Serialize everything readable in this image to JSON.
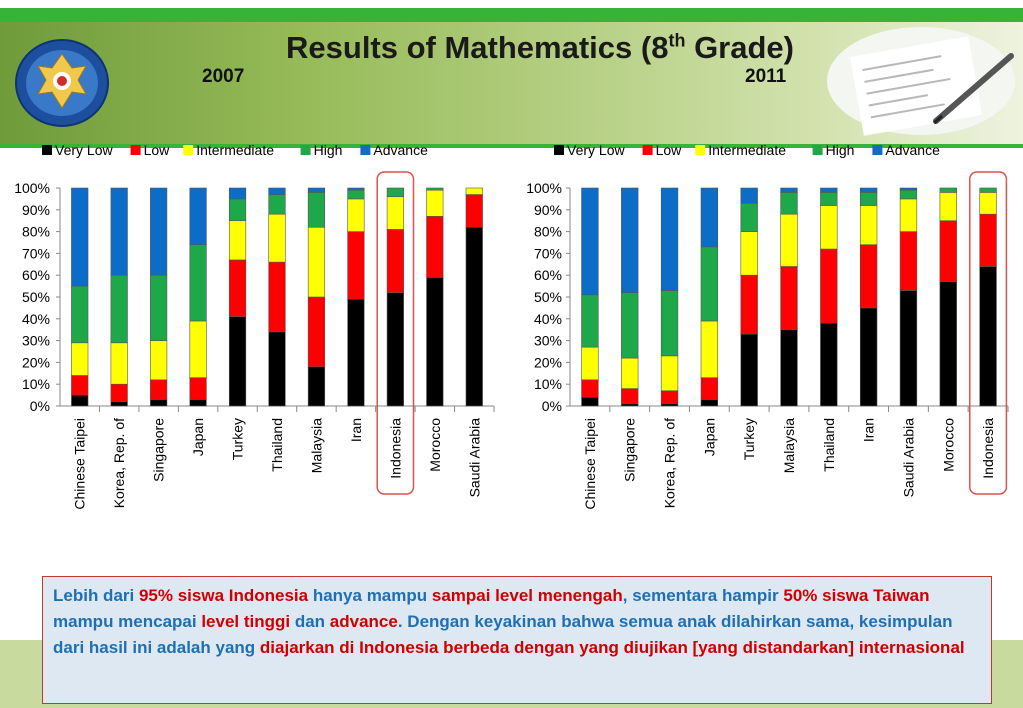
{
  "slide": {
    "title_main": "Results of Mathematics (8",
    "title_sup": "th",
    "title_end": " Grade)",
    "year_left": "2007",
    "year_right": "2011"
  },
  "colors": {
    "very_low": "#000000",
    "low": "#ff0000",
    "intermediate": "#ffff00",
    "high": "#1fa84a",
    "advance": "#0b6dc7",
    "highlight_box": "#d9534f"
  },
  "chart_data": [
    {
      "type": "bar",
      "stacked": true,
      "year": "2007",
      "categories": [
        "Chinese Taipei",
        "Korea, Rep. of",
        "Singapore",
        "Japan",
        "Turkey",
        "Thailand",
        "Malaysia",
        "Iran",
        "Indonesia",
        "Morocco",
        "Saudi Arabia"
      ],
      "series": [
        {
          "name": "Very Low",
          "color": "#000000",
          "values": [
            5,
            2,
            3,
            3,
            41,
            34,
            18,
            49,
            52,
            59,
            82
          ]
        },
        {
          "name": "Low",
          "color": "#ff0000",
          "values": [
            9,
            8,
            9,
            10,
            26,
            32,
            32,
            31,
            29,
            28,
            15
          ]
        },
        {
          "name": "Intermediate",
          "color": "#ffff00",
          "values": [
            15,
            19,
            18,
            26,
            18,
            22,
            32,
            15,
            15,
            12,
            3
          ]
        },
        {
          "name": "High",
          "color": "#1fa84a",
          "values": [
            26,
            31,
            30,
            35,
            10,
            9,
            16,
            4,
            4,
            1,
            0
          ]
        },
        {
          "name": "Advance",
          "color": "#0b6dc7",
          "values": [
            45,
            40,
            40,
            26,
            5,
            3,
            2,
            1,
            0,
            0,
            0
          ]
        }
      ],
      "yticks": [
        "0%",
        "10%",
        "20%",
        "30%",
        "40%",
        "50%",
        "60%",
        "70%",
        "80%",
        "90%",
        "100%"
      ],
      "ylim": [
        0,
        100
      ],
      "legend": "top",
      "highlight": "Indonesia"
    },
    {
      "type": "bar",
      "stacked": true,
      "year": "2011",
      "categories": [
        "Chinese Taipei",
        "Singapore",
        "Korea, Rep. of",
        "Japan",
        "Turkey",
        "Malaysia",
        "Thailand",
        "Iran",
        "Saudi Arabia",
        "Morocco",
        "Indonesia"
      ],
      "series": [
        {
          "name": "Very Low",
          "color": "#000000",
          "values": [
            4,
            1,
            1,
            3,
            33,
            35,
            38,
            45,
            53,
            57,
            64
          ]
        },
        {
          "name": "Low",
          "color": "#ff0000",
          "values": [
            8,
            7,
            6,
            10,
            27,
            29,
            34,
            29,
            27,
            28,
            24
          ]
        },
        {
          "name": "Intermediate",
          "color": "#ffff00",
          "values": [
            15,
            14,
            16,
            26,
            20,
            24,
            20,
            18,
            15,
            13,
            10
          ]
        },
        {
          "name": "High",
          "color": "#1fa84a",
          "values": [
            24,
            30,
            30,
            34,
            13,
            10,
            6,
            6,
            4,
            2,
            2
          ]
        },
        {
          "name": "Advance",
          "color": "#0b6dc7",
          "values": [
            49,
            48,
            47,
            27,
            7,
            2,
            2,
            2,
            1,
            0,
            0
          ]
        }
      ],
      "yticks": [
        "0%",
        "10%",
        "20%",
        "30%",
        "40%",
        "50%",
        "60%",
        "70%",
        "80%",
        "90%",
        "100%"
      ],
      "ylim": [
        0,
        100
      ],
      "legend": "top",
      "highlight": "Indonesia"
    }
  ],
  "caption": {
    "p1": "Lebih dari ",
    "p2": "95% siswa Indonesia",
    "p3": " hanya mampu ",
    "p4": "sampai level menengah",
    "p5": ", sementara hampir ",
    "p6": "50% siswa Taiwan",
    "p7": " mampu mencapai ",
    "p8": "level tinggi",
    "p9": " dan ",
    "p10": "advance",
    "p11": ". Dengan keyakinan bahwa semua anak dilahirkan sama, kesimpulan dari hasil ini adalah yang ",
    "p12": "diajarkan di Indonesia berbeda dengan yang diujikan [yang distandarkan] internasional"
  }
}
